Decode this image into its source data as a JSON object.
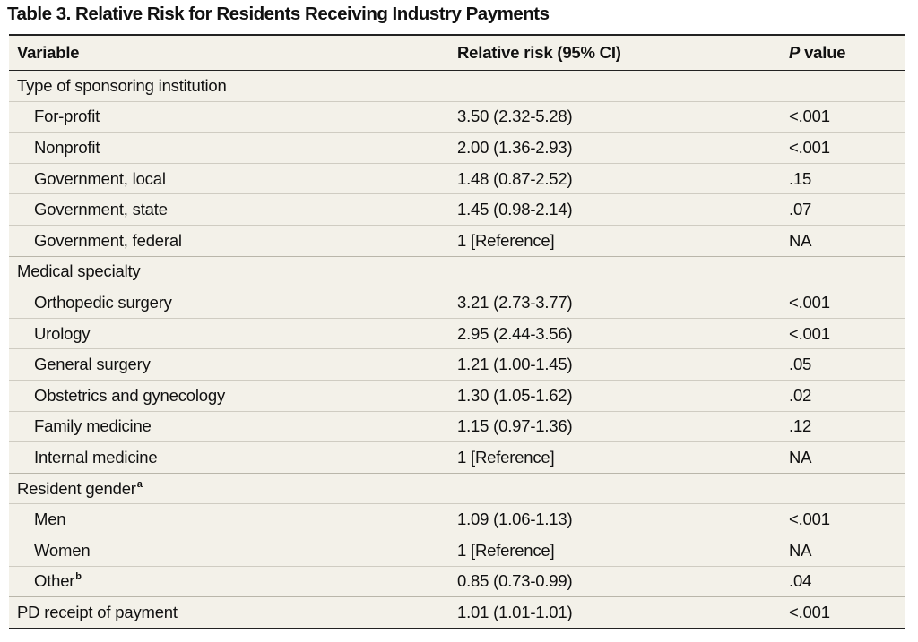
{
  "title": "Table 3. Relative Risk for Residents Receiving Industry Payments",
  "headers": {
    "variable": "Variable",
    "rr": "Relative risk (95% CI)",
    "p_italic": "P",
    "p_rest": " value"
  },
  "rows": [
    {
      "type": "cat",
      "label": "Type of sponsoring institution",
      "rr": "",
      "p": ""
    },
    {
      "type": "sub",
      "label": "For-profit",
      "rr": "3.50 (2.32-5.28)",
      "p": "<.001"
    },
    {
      "type": "sub",
      "label": "Nonprofit",
      "rr": "2.00 (1.36-2.93)",
      "p": "<.001"
    },
    {
      "type": "sub",
      "label": "Government, local",
      "rr": "1.48 (0.87-2.52)",
      "p": ".15"
    },
    {
      "type": "sub",
      "label": "Government, state",
      "rr": "1.45 (0.98-2.14)",
      "p": ".07"
    },
    {
      "type": "sub",
      "label": "Government, federal",
      "rr": "1 [Reference]",
      "p": "NA"
    },
    {
      "type": "cat",
      "label": "Medical specialty",
      "rr": "",
      "p": ""
    },
    {
      "type": "sub",
      "label": "Orthopedic surgery",
      "rr": "3.21 (2.73-3.77)",
      "p": "<.001"
    },
    {
      "type": "sub",
      "label": "Urology",
      "rr": "2.95 (2.44-3.56)",
      "p": "<.001"
    },
    {
      "type": "sub",
      "label": "General surgery",
      "rr": "1.21 (1.00-1.45)",
      "p": ".05"
    },
    {
      "type": "sub",
      "label": "Obstetrics and gynecology",
      "rr": "1.30 (1.05-1.62)",
      "p": ".02"
    },
    {
      "type": "sub",
      "label": "Family medicine",
      "rr": "1.15 (0.97-1.36)",
      "p": ".12"
    },
    {
      "type": "sub",
      "label": "Internal medicine",
      "rr": "1 [Reference]",
      "p": "NA"
    },
    {
      "type": "cat",
      "label": "Resident gender",
      "sup": "a",
      "rr": "",
      "p": ""
    },
    {
      "type": "sub",
      "label": "Men",
      "rr": "1.09 (1.06-1.13)",
      "p": "<.001"
    },
    {
      "type": "sub",
      "label": "Women",
      "rr": "1 [Reference]",
      "p": "NA"
    },
    {
      "type": "sub",
      "label": "Other",
      "sup": "b",
      "rr": "0.85 (0.73-0.99)",
      "p": ".04"
    },
    {
      "type": "cat",
      "label": "PD receipt of payment",
      "rr": "1.01 (1.01-1.01)",
      "p": "<.001"
    }
  ],
  "colors": {
    "table_background": "#f3f1e9",
    "rule": "#222222",
    "row_divider": "#cfccc2"
  }
}
